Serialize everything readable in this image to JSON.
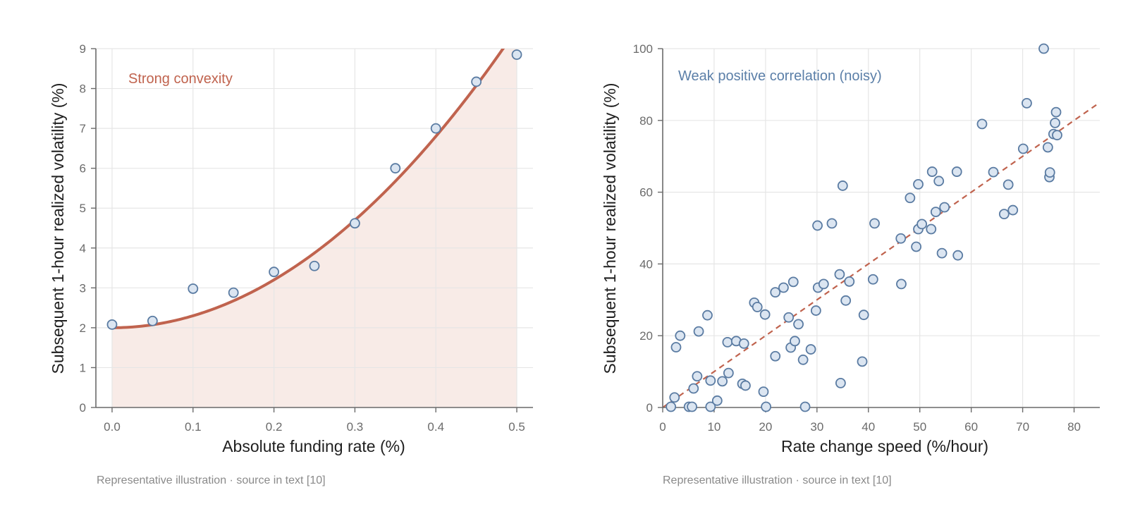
{
  "chart_data": [
    {
      "type": "scatter",
      "annotation": "Strong convexity",
      "xlabel": "Absolute funding rate (%)",
      "ylabel": "Subsequent 1-hour realized volatility (%)",
      "caption": "Representative illustration · source in text [10]",
      "xlim": [
        -0.02,
        0.52
      ],
      "ylim": [
        0,
        9
      ],
      "xticks": [
        "0.0",
        "0.1",
        "0.2",
        "0.3",
        "0.4",
        "0.5"
      ],
      "yticks": [
        "0",
        "1",
        "2",
        "3",
        "4",
        "5",
        "6",
        "7",
        "8",
        "9"
      ],
      "grid": true,
      "points": [
        {
          "x": 0.0,
          "y": 2.08
        },
        {
          "x": 0.05,
          "y": 2.17
        },
        {
          "x": 0.1,
          "y": 2.98
        },
        {
          "x": 0.15,
          "y": 2.88
        },
        {
          "x": 0.2,
          "y": 3.4
        },
        {
          "x": 0.25,
          "y": 3.55
        },
        {
          "x": 0.3,
          "y": 4.62
        },
        {
          "x": 0.35,
          "y": 6.0
        },
        {
          "x": 0.4,
          "y": 7.0
        },
        {
          "x": 0.45,
          "y": 8.17
        },
        {
          "x": 0.5,
          "y": 8.85
        }
      ],
      "fit": {
        "form": "y = 2 + 30 * x^2",
        "intercept": 2,
        "coefficient": 30,
        "power": 2,
        "color": "#c0634e"
      },
      "fill_color": "#f8ebe7"
    },
    {
      "type": "scatter",
      "annotation": "Weak positive correlation (noisy)",
      "xlabel": "Rate change speed (%/hour)",
      "ylabel": "Subsequent 1-hour realized volatility (%)",
      "caption": "Representative illustration · source in text [10]",
      "xlim": [
        0,
        85
      ],
      "ylim": [
        0,
        100
      ],
      "xticks": [
        "0",
        "10",
        "20",
        "30",
        "40",
        "50",
        "60",
        "70",
        "80"
      ],
      "yticks": [
        "0",
        "20",
        "40",
        "60",
        "80",
        "100"
      ],
      "grid": true,
      "points": [
        {
          "x": 1.6,
          "y": 0.2
        },
        {
          "x": 2.3,
          "y": 2.8
        },
        {
          "x": 2.6,
          "y": 16.8
        },
        {
          "x": 3.4,
          "y": 20.0
        },
        {
          "x": 5.1,
          "y": 0.2
        },
        {
          "x": 5.7,
          "y": 0.2
        },
        {
          "x": 6.0,
          "y": 5.3
        },
        {
          "x": 6.7,
          "y": 8.7
        },
        {
          "x": 7.0,
          "y": 21.2
        },
        {
          "x": 8.7,
          "y": 25.7
        },
        {
          "x": 9.3,
          "y": 7.5
        },
        {
          "x": 9.3,
          "y": 0.2
        },
        {
          "x": 10.6,
          "y": 1.9
        },
        {
          "x": 11.6,
          "y": 7.3
        },
        {
          "x": 12.6,
          "y": 18.2
        },
        {
          "x": 12.8,
          "y": 9.6
        },
        {
          "x": 14.3,
          "y": 18.5
        },
        {
          "x": 15.5,
          "y": 6.6
        },
        {
          "x": 15.8,
          "y": 17.8
        },
        {
          "x": 16.1,
          "y": 6.1
        },
        {
          "x": 17.8,
          "y": 29.2
        },
        {
          "x": 18.4,
          "y": 28.0
        },
        {
          "x": 19.6,
          "y": 4.4
        },
        {
          "x": 19.9,
          "y": 25.9
        },
        {
          "x": 20.1,
          "y": 0.2
        },
        {
          "x": 21.9,
          "y": 14.3
        },
        {
          "x": 21.9,
          "y": 32.1
        },
        {
          "x": 23.5,
          "y": 33.4
        },
        {
          "x": 24.5,
          "y": 25.1
        },
        {
          "x": 24.9,
          "y": 16.7
        },
        {
          "x": 25.4,
          "y": 35.0
        },
        {
          "x": 25.7,
          "y": 18.5
        },
        {
          "x": 26.4,
          "y": 23.2
        },
        {
          "x": 27.3,
          "y": 13.3
        },
        {
          "x": 27.7,
          "y": 0.2
        },
        {
          "x": 28.8,
          "y": 16.2
        },
        {
          "x": 29.8,
          "y": 27.0
        },
        {
          "x": 30.1,
          "y": 50.7
        },
        {
          "x": 30.2,
          "y": 33.4
        },
        {
          "x": 31.3,
          "y": 34.4
        },
        {
          "x": 32.9,
          "y": 51.3
        },
        {
          "x": 34.4,
          "y": 37.1
        },
        {
          "x": 34.6,
          "y": 6.8
        },
        {
          "x": 35.0,
          "y": 61.8
        },
        {
          "x": 35.6,
          "y": 29.8
        },
        {
          "x": 36.3,
          "y": 35.1
        },
        {
          "x": 38.8,
          "y": 12.8
        },
        {
          "x": 39.1,
          "y": 25.8
        },
        {
          "x": 40.9,
          "y": 35.7
        },
        {
          "x": 41.2,
          "y": 51.3
        },
        {
          "x": 46.3,
          "y": 47.1
        },
        {
          "x": 46.4,
          "y": 34.4
        },
        {
          "x": 48.1,
          "y": 58.4
        },
        {
          "x": 49.3,
          "y": 44.8
        },
        {
          "x": 49.7,
          "y": 62.2
        },
        {
          "x": 49.7,
          "y": 49.7
        },
        {
          "x": 50.4,
          "y": 51.1
        },
        {
          "x": 52.2,
          "y": 49.7
        },
        {
          "x": 52.4,
          "y": 65.7
        },
        {
          "x": 53.1,
          "y": 54.5
        },
        {
          "x": 53.7,
          "y": 63.1
        },
        {
          "x": 54.3,
          "y": 43.0
        },
        {
          "x": 54.8,
          "y": 55.8
        },
        {
          "x": 57.2,
          "y": 65.7
        },
        {
          "x": 57.4,
          "y": 42.4
        },
        {
          "x": 62.1,
          "y": 79.0
        },
        {
          "x": 64.3,
          "y": 65.6
        },
        {
          "x": 66.4,
          "y": 53.9
        },
        {
          "x": 67.2,
          "y": 62.1
        },
        {
          "x": 68.1,
          "y": 55.0
        },
        {
          "x": 70.1,
          "y": 72.1
        },
        {
          "x": 70.8,
          "y": 84.8
        },
        {
          "x": 74.1,
          "y": 100.0
        },
        {
          "x": 74.9,
          "y": 72.5
        },
        {
          "x": 75.2,
          "y": 64.2
        },
        {
          "x": 75.3,
          "y": 65.5
        },
        {
          "x": 76.0,
          "y": 76.2
        },
        {
          "x": 76.3,
          "y": 79.3
        },
        {
          "x": 76.5,
          "y": 82.3
        },
        {
          "x": 76.7,
          "y": 75.9
        }
      ],
      "fit": {
        "form": "y = 1.0 * x",
        "slope": 1.0,
        "intercept": 0,
        "style": "dashed",
        "color": "#c0634e"
      }
    }
  ]
}
